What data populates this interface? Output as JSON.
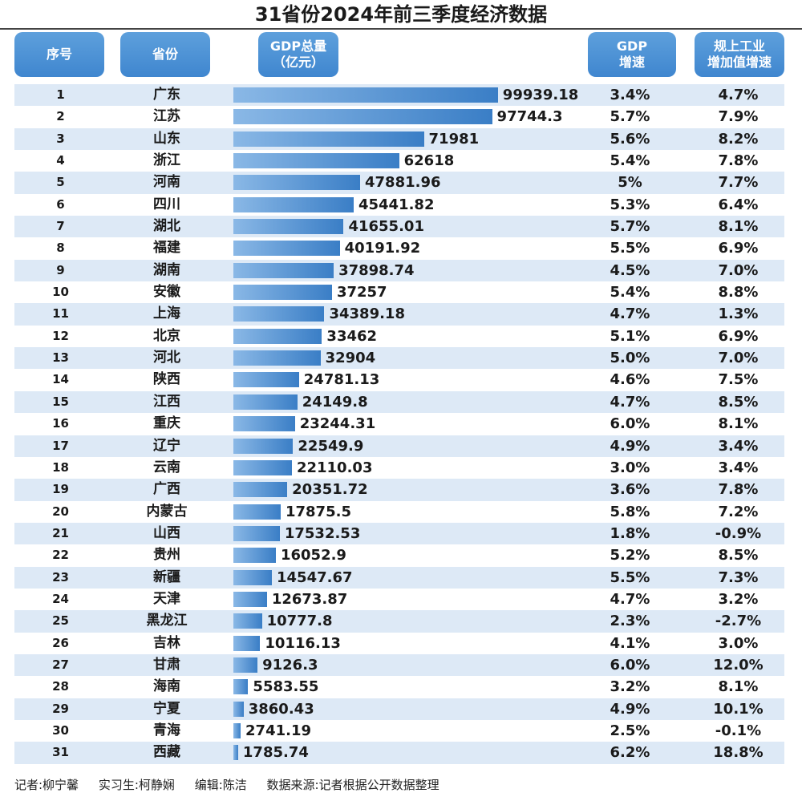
{
  "title": "31省份2024年前三季度经济数据",
  "headers": {
    "index": "序号",
    "province": "省份",
    "gdp_line1": "GDP总量",
    "gdp_line2": "（亿元）",
    "growth_line1": "GDP",
    "growth_line2": "增速",
    "industry_line1": "规上工业",
    "industry_line2": "增加值增速"
  },
  "chart_data": {
    "type": "table",
    "bar_column": "GDP总量（亿元）",
    "xlim": [
      0,
      100000
    ],
    "rows": [
      {
        "idx": "1",
        "province": "广东",
        "gdp": 99939.18,
        "gdp_text": "99939.18",
        "growth": "3.4%",
        "industry": "4.7%"
      },
      {
        "idx": "2",
        "province": "江苏",
        "gdp": 97744.3,
        "gdp_text": "97744.3",
        "growth": "5.7%",
        "industry": "7.9%"
      },
      {
        "idx": "3",
        "province": "山东",
        "gdp": 71981,
        "gdp_text": "71981",
        "growth": "5.6%",
        "industry": "8.2%"
      },
      {
        "idx": "4",
        "province": "浙江",
        "gdp": 62618,
        "gdp_text": "62618",
        "growth": "5.4%",
        "industry": "7.8%"
      },
      {
        "idx": "5",
        "province": "河南",
        "gdp": 47881.96,
        "gdp_text": "47881.96",
        "growth": "5%",
        "industry": "7.7%"
      },
      {
        "idx": "6",
        "province": "四川",
        "gdp": 45441.82,
        "gdp_text": "45441.82",
        "growth": "5.3%",
        "industry": "6.4%"
      },
      {
        "idx": "7",
        "province": "湖北",
        "gdp": 41655.01,
        "gdp_text": "41655.01",
        "growth": "5.7%",
        "industry": "8.1%"
      },
      {
        "idx": "8",
        "province": "福建",
        "gdp": 40191.92,
        "gdp_text": "40191.92",
        "growth": "5.5%",
        "industry": "6.9%"
      },
      {
        "idx": "9",
        "province": "湖南",
        "gdp": 37898.74,
        "gdp_text": "37898.74",
        "growth": "4.5%",
        "industry": "7.0%"
      },
      {
        "idx": "10",
        "province": "安徽",
        "gdp": 37257,
        "gdp_text": "37257",
        "growth": "5.4%",
        "industry": "8.8%"
      },
      {
        "idx": "11",
        "province": "上海",
        "gdp": 34389.18,
        "gdp_text": "34389.18",
        "growth": "4.7%",
        "industry": "1.3%"
      },
      {
        "idx": "12",
        "province": "北京",
        "gdp": 33462,
        "gdp_text": "33462",
        "growth": "5.1%",
        "industry": "6.9%"
      },
      {
        "idx": "13",
        "province": "河北",
        "gdp": 32904,
        "gdp_text": "32904",
        "growth": "5.0%",
        "industry": "7.0%"
      },
      {
        "idx": "14",
        "province": "陕西",
        "gdp": 24781.13,
        "gdp_text": "24781.13",
        "growth": "4.6%",
        "industry": "7.5%"
      },
      {
        "idx": "15",
        "province": "江西",
        "gdp": 24149.8,
        "gdp_text": "24149.8",
        "growth": "4.7%",
        "industry": "8.5%"
      },
      {
        "idx": "16",
        "province": "重庆",
        "gdp": 23244.31,
        "gdp_text": "23244.31",
        "growth": "6.0%",
        "industry": "8.1%"
      },
      {
        "idx": "17",
        "province": "辽宁",
        "gdp": 22549.9,
        "gdp_text": "22549.9",
        "growth": "4.9%",
        "industry": "3.4%"
      },
      {
        "idx": "18",
        "province": "云南",
        "gdp": 22110.03,
        "gdp_text": "22110.03",
        "growth": "3.0%",
        "industry": "3.4%"
      },
      {
        "idx": "19",
        "province": "广西",
        "gdp": 20351.72,
        "gdp_text": "20351.72",
        "growth": "3.6%",
        "industry": "7.8%"
      },
      {
        "idx": "20",
        "province": "内蒙古",
        "gdp": 17875.5,
        "gdp_text": "17875.5",
        "growth": "5.8%",
        "industry": "7.2%"
      },
      {
        "idx": "21",
        "province": "山西",
        "gdp": 17532.53,
        "gdp_text": "17532.53",
        "growth": "1.8%",
        "industry": "-0.9%"
      },
      {
        "idx": "22",
        "province": "贵州",
        "gdp": 16052.9,
        "gdp_text": "16052.9",
        "growth": "5.2%",
        "industry": "8.5%"
      },
      {
        "idx": "23",
        "province": "新疆",
        "gdp": 14547.67,
        "gdp_text": "14547.67",
        "growth": "5.5%",
        "industry": "7.3%"
      },
      {
        "idx": "24",
        "province": "天津",
        "gdp": 12673.87,
        "gdp_text": "12673.87",
        "growth": "4.7%",
        "industry": "3.2%"
      },
      {
        "idx": "25",
        "province": "黑龙江",
        "gdp": 10777.8,
        "gdp_text": "10777.8",
        "growth": "2.3%",
        "industry": "-2.7%"
      },
      {
        "idx": "26",
        "province": "吉林",
        "gdp": 10116.13,
        "gdp_text": "10116.13",
        "growth": "4.1%",
        "industry": "3.0%"
      },
      {
        "idx": "27",
        "province": "甘肃",
        "gdp": 9126.3,
        "gdp_text": "9126.3",
        "growth": "6.0%",
        "industry": "12.0%"
      },
      {
        "idx": "28",
        "province": "海南",
        "gdp": 5583.55,
        "gdp_text": "5583.55",
        "growth": "3.2%",
        "industry": "8.1%"
      },
      {
        "idx": "29",
        "province": "宁夏",
        "gdp": 3860.43,
        "gdp_text": "3860.43",
        "growth": "4.9%",
        "industry": "10.1%"
      },
      {
        "idx": "30",
        "province": "青海",
        "gdp": 2741.19,
        "gdp_text": "2741.19",
        "growth": "2.5%",
        "industry": "-0.1%"
      },
      {
        "idx": "31",
        "province": "西藏",
        "gdp": 1785.74,
        "gdp_text": "1785.74",
        "growth": "6.2%",
        "industry": "18.8%"
      }
    ]
  },
  "colors": {
    "header_bg": "#4a90d9",
    "row_stripe": "#dde9f6",
    "bar_start": "#8ab8e6",
    "bar_end": "#3a7ec6"
  },
  "footer": {
    "reporter": "记者:柳宁馨",
    "intern": "实习生:柯静娴",
    "editor": "编辑:陈洁",
    "source": "数据来源:记者根据公开数据整理"
  }
}
